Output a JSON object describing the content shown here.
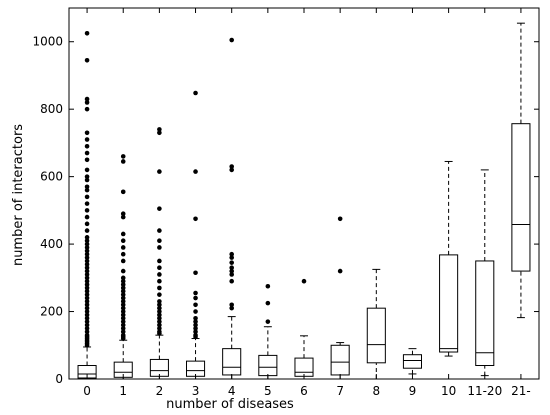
{
  "chart_data": {
    "type": "box",
    "xlabel": "number of diseases",
    "ylabel": "number of interactors",
    "ylim": [
      0,
      1100
    ],
    "yticks": [
      0,
      200,
      400,
      600,
      800,
      1000
    ],
    "grid": false,
    "categories": [
      "0",
      "1",
      "2",
      "3",
      "4",
      "5",
      "6",
      "7",
      "8",
      "9",
      "10",
      "11-20",
      "21-"
    ],
    "boxes": [
      {
        "category": "0",
        "whisker_low": 0,
        "q1": 3,
        "median": 15,
        "q3": 40,
        "whisker_high": 95,
        "outliers": [
          100,
          105,
          110,
          115,
          120,
          125,
          130,
          140,
          150,
          160,
          170,
          180,
          190,
          200,
          210,
          220,
          230,
          240,
          250,
          260,
          270,
          280,
          290,
          300,
          310,
          320,
          330,
          340,
          350,
          360,
          370,
          380,
          390,
          400,
          410,
          420,
          440,
          460,
          480,
          500,
          520,
          540,
          560,
          570,
          590,
          600,
          620,
          650,
          670,
          690,
          710,
          730,
          800,
          820,
          830,
          945,
          1025
        ]
      },
      {
        "category": "1",
        "whisker_low": 0,
        "q1": 5,
        "median": 20,
        "q3": 50,
        "whisker_high": 115,
        "outliers": [
          120,
          125,
          130,
          140,
          150,
          160,
          170,
          180,
          190,
          200,
          210,
          220,
          230,
          240,
          250,
          260,
          270,
          280,
          290,
          300,
          320,
          350,
          370,
          390,
          410,
          430,
          480,
          490,
          555,
          645,
          660
        ]
      },
      {
        "category": "2",
        "whisker_low": 0,
        "q1": 8,
        "median": 25,
        "q3": 58,
        "whisker_high": 130,
        "outliers": [
          135,
          140,
          150,
          160,
          170,
          180,
          190,
          200,
          210,
          220,
          230,
          250,
          270,
          290,
          310,
          330,
          350,
          390,
          410,
          440,
          505,
          615,
          730,
          740
        ]
      },
      {
        "category": "3",
        "whisker_low": 0,
        "q1": 8,
        "median": 25,
        "q3": 53,
        "whisker_high": 120,
        "outliers": [
          125,
          130,
          140,
          150,
          160,
          170,
          180,
          200,
          220,
          240,
          255,
          315,
          475,
          615,
          848
        ]
      },
      {
        "category": "4",
        "whisker_low": 0,
        "q1": 12,
        "median": 35,
        "q3": 90,
        "whisker_high": 185,
        "outliers": [
          210,
          220,
          290,
          310,
          320,
          330,
          345,
          360,
          370,
          620,
          630,
          1005
        ]
      },
      {
        "category": "5",
        "whisker_low": 0,
        "q1": 10,
        "median": 35,
        "q3": 70,
        "whisker_high": 155,
        "outliers": [
          170,
          225,
          275
        ]
      },
      {
        "category": "6",
        "whisker_low": 0,
        "q1": 8,
        "median": 20,
        "q3": 62,
        "whisker_high": 128,
        "outliers": [
          290
        ]
      },
      {
        "category": "7",
        "whisker_low": 0,
        "q1": 12,
        "median": 50,
        "q3": 100,
        "whisker_high": 108,
        "outliers": [
          320,
          475
        ]
      },
      {
        "category": "8",
        "whisker_low": 0,
        "q1": 48,
        "median": 102,
        "q3": 210,
        "whisker_high": 325,
        "outliers": []
      },
      {
        "category": "9",
        "whisker_low": 15,
        "q1": 32,
        "median": 55,
        "q3": 72,
        "whisker_high": 90,
        "outliers": []
      },
      {
        "category": "10",
        "whisker_low": 68,
        "q1": 80,
        "median": 90,
        "q3": 368,
        "whisker_high": 645,
        "outliers": []
      },
      {
        "category": "11-20",
        "whisker_low": 10,
        "q1": 40,
        "median": 78,
        "q3": 350,
        "whisker_high": 620,
        "outliers": []
      },
      {
        "category": "21-",
        "whisker_low": 182,
        "q1": 320,
        "median": 458,
        "q3": 757,
        "whisker_high": 1055,
        "outliers": []
      }
    ]
  }
}
